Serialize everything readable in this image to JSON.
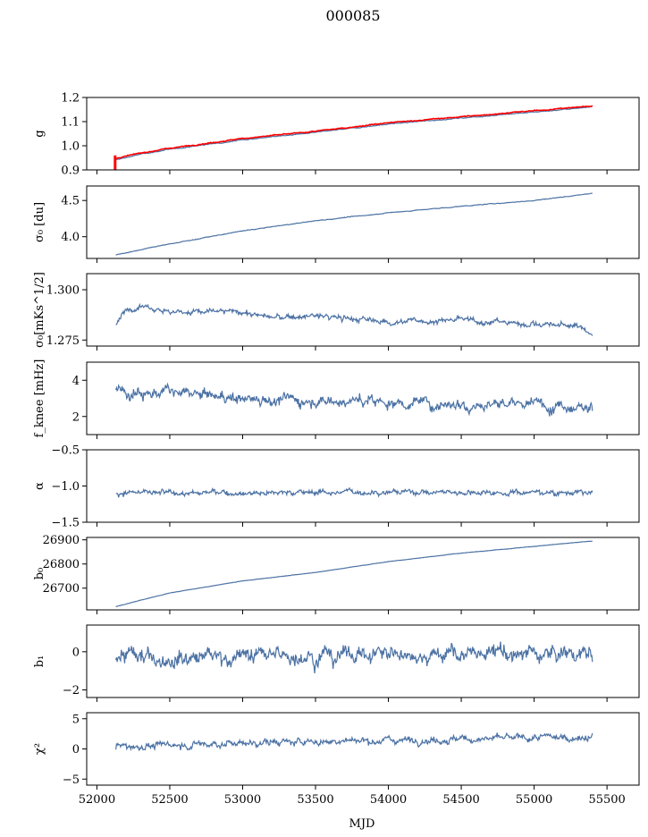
{
  "title": "000085",
  "colors": {
    "series": "#4c72a4",
    "overlay": "#ff0000",
    "axis": "#000000"
  },
  "x_axis": {
    "label": "MJD",
    "ticks": [
      52000,
      52500,
      53000,
      53500,
      54000,
      54500,
      55000,
      55500
    ],
    "tick_labels": [
      "52000",
      "52500",
      "53000",
      "53500",
      "54000",
      "54500",
      "55000",
      "55500"
    ]
  },
  "chart_data": [
    {
      "type": "line",
      "id": "g",
      "ylabel": "g",
      "xlim": [
        51930,
        55720
      ],
      "ylim": [
        0.9,
        1.2
      ],
      "yticks": [
        0.9,
        1.0,
        1.1,
        1.2
      ],
      "ytick_labels": [
        "0.9",
        "1.0",
        "1.1",
        "1.2"
      ],
      "series": [
        {
          "color": "#4c72a4",
          "noise": 0.002,
          "values": [
            [
              52120,
              0.94
            ],
            [
              52300,
              0.965
            ],
            [
              52500,
              0.985
            ],
            [
              53000,
              1.025
            ],
            [
              53500,
              1.055
            ],
            [
              54000,
              1.09
            ],
            [
              54500,
              1.115
            ],
            [
              55000,
              1.14
            ],
            [
              55300,
              1.155
            ],
            [
              55400,
              1.165
            ]
          ]
        },
        {
          "color": "#ff0000",
          "noise": 0.002,
          "values": [
            [
              52120,
              0.945
            ],
            [
              52300,
              0.97
            ],
            [
              52500,
              0.99
            ],
            [
              53000,
              1.03
            ],
            [
              53500,
              1.06
            ],
            [
              54000,
              1.095
            ],
            [
              54500,
              1.12
            ],
            [
              55000,
              1.145
            ],
            [
              55300,
              1.16
            ],
            [
              55400,
              1.165
            ]
          ]
        }
      ]
    },
    {
      "type": "line",
      "id": "sigma0",
      "ylabel": "σ₀ [du]",
      "xlim": [
        51930,
        55720
      ],
      "ylim": [
        3.7,
        4.7
      ],
      "yticks": [
        4.0,
        4.5
      ],
      "ytick_labels": [
        "4.0",
        "4.5"
      ],
      "series": [
        {
          "color": "#4c72a4",
          "noise": 0.005,
          "values": [
            [
              52130,
              3.75
            ],
            [
              52300,
              3.82
            ],
            [
              52500,
              3.9
            ],
            [
              53000,
              4.08
            ],
            [
              53500,
              4.22
            ],
            [
              54000,
              4.33
            ],
            [
              54500,
              4.42
            ],
            [
              55000,
              4.5
            ],
            [
              55400,
              4.6
            ]
          ]
        }
      ]
    },
    {
      "type": "line",
      "id": "sigma0-mks",
      "ylabel": "σ₀[mKs^1/2]",
      "xlim": [
        51930,
        55720
      ],
      "ylim": [
        1.272,
        1.308
      ],
      "yticks": [
        1.275,
        1.3
      ],
      "ytick_labels": [
        "1.275",
        "1.300"
      ],
      "series": [
        {
          "color": "#4c72a4",
          "noise": 0.0015,
          "values": [
            [
              52130,
              1.282
            ],
            [
              52200,
              1.29
            ],
            [
              52300,
              1.293
            ],
            [
              52500,
              1.289
            ],
            [
              53000,
              1.289
            ],
            [
              53200,
              1.286
            ],
            [
              53500,
              1.287
            ],
            [
              54000,
              1.284
            ],
            [
              54500,
              1.285
            ],
            [
              55000,
              1.283
            ],
            [
              55300,
              1.282
            ],
            [
              55400,
              1.278
            ]
          ]
        }
      ]
    },
    {
      "type": "line",
      "id": "fknee",
      "ylabel": "f_knee [mHz]",
      "xlim": [
        51930,
        55720
      ],
      "ylim": [
        1.0,
        5.0
      ],
      "yticks": [
        2,
        4
      ],
      "ytick_labels": [
        "2",
        "4"
      ],
      "series": [
        {
          "color": "#4c72a4",
          "noise": 0.35,
          "values": [
            [
              52130,
              3.4
            ],
            [
              52500,
              3.3
            ],
            [
              53000,
              3.0
            ],
            [
              53500,
              2.9
            ],
            [
              54000,
              2.8
            ],
            [
              54500,
              2.7
            ],
            [
              55000,
              2.7
            ],
            [
              55400,
              2.6
            ]
          ]
        }
      ]
    },
    {
      "type": "line",
      "id": "alpha",
      "ylabel": "α",
      "xlim": [
        51930,
        55720
      ],
      "ylim": [
        -1.5,
        -0.5
      ],
      "yticks": [
        -1.5,
        -1.0,
        -0.5
      ],
      "ytick_labels": [
        "−1.5",
        "−1.0",
        "−0.5"
      ],
      "series": [
        {
          "color": "#4c72a4",
          "noise": 0.04,
          "values": [
            [
              52130,
              -1.1
            ],
            [
              53000,
              -1.09
            ],
            [
              54000,
              -1.08
            ],
            [
              55400,
              -1.09
            ]
          ]
        }
      ]
    },
    {
      "type": "line",
      "id": "b0",
      "ylabel": "b₀",
      "xlim": [
        51930,
        55720
      ],
      "ylim": [
        26610,
        26910
      ],
      "yticks": [
        26700,
        26800,
        26900
      ],
      "ytick_labels": [
        "26700",
        "26800",
        "26900"
      ],
      "series": [
        {
          "color": "#4c72a4",
          "noise": 0.6,
          "values": [
            [
              52130,
              26623
            ],
            [
              52300,
              26650
            ],
            [
              52500,
              26680
            ],
            [
              53000,
              26730
            ],
            [
              53500,
              26765
            ],
            [
              54000,
              26810
            ],
            [
              54500,
              26845
            ],
            [
              55000,
              26873
            ],
            [
              55400,
              26895
            ]
          ]
        }
      ]
    },
    {
      "type": "line",
      "id": "b1",
      "ylabel": "b₁",
      "xlim": [
        51930,
        55720
      ],
      "ylim": [
        -2.4,
        1.4
      ],
      "yticks": [
        -2,
        0
      ],
      "ytick_labels": [
        "−2",
        "0"
      ],
      "series": [
        {
          "color": "#4c72a4",
          "noise": 0.45,
          "values": [
            [
              52130,
              -0.3
            ],
            [
              53000,
              -0.2
            ],
            [
              54000,
              -0.1
            ],
            [
              55400,
              -0.1
            ]
          ]
        }
      ]
    },
    {
      "type": "line",
      "id": "chi2",
      "ylabel": "χ²",
      "xlim": [
        51930,
        55720
      ],
      "ylim": [
        -6,
        6
      ],
      "yticks": [
        -5,
        0,
        5
      ],
      "ytick_labels": [
        "−5",
        "0",
        "5"
      ],
      "series": [
        {
          "color": "#4c72a4",
          "noise": 0.6,
          "values": [
            [
              52130,
              0.3
            ],
            [
              52500,
              0.6
            ],
            [
              53000,
              1.0
            ],
            [
              53500,
              1.2
            ],
            [
              54000,
              1.5
            ],
            [
              54500,
              1.6
            ],
            [
              55000,
              1.8
            ],
            [
              55400,
              2.0
            ]
          ]
        }
      ]
    }
  ]
}
